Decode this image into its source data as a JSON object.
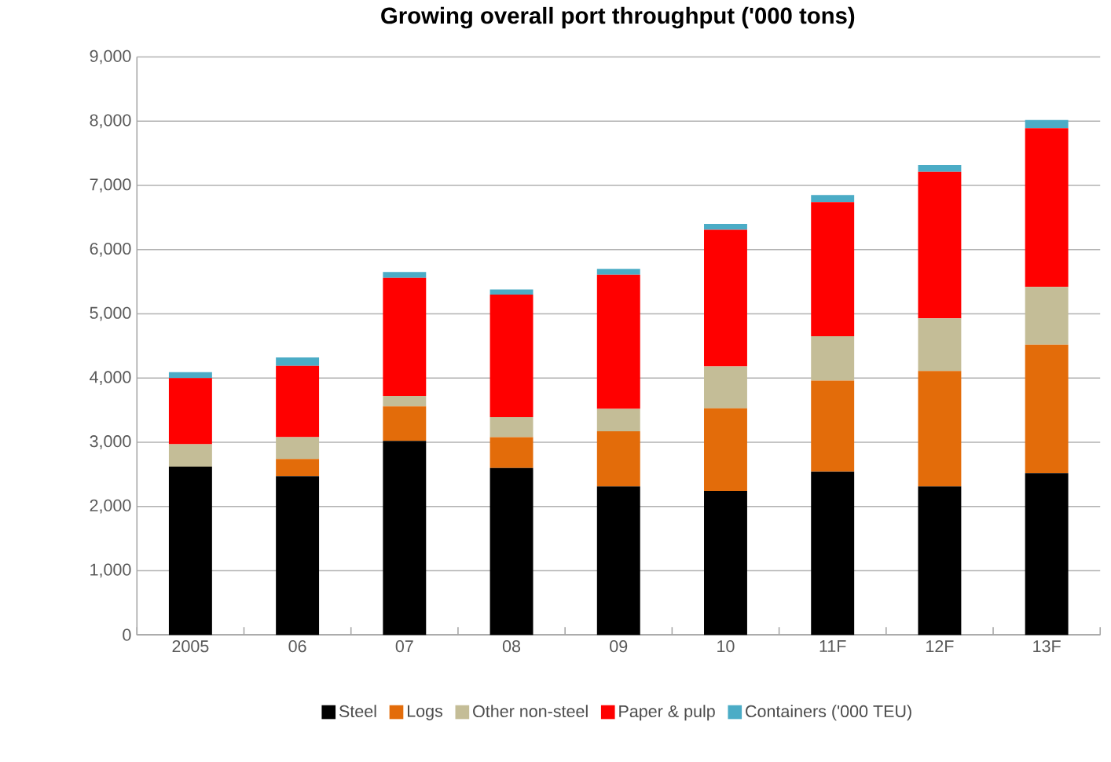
{
  "chart_data": {
    "type": "bar",
    "stacked": true,
    "title": "Growing overall port throughput ('000 tons)",
    "categories": [
      "2005",
      "06",
      "07",
      "08",
      "09",
      "10",
      "11F",
      "12F",
      "13F"
    ],
    "series": [
      {
        "name": "Steel",
        "color": "#000000",
        "values": [
          2620,
          2470,
          3020,
          2600,
          2310,
          2240,
          2540,
          2310,
          2520
        ]
      },
      {
        "name": "Logs",
        "color": "#e36c0a",
        "values": [
          0,
          270,
          540,
          480,
          860,
          1290,
          1420,
          1800,
          2000
        ]
      },
      {
        "name": "Other non-steel",
        "color": "#c4bd97",
        "values": [
          350,
          340,
          160,
          310,
          350,
          650,
          690,
          820,
          900
        ]
      },
      {
        "name": "Paper & pulp",
        "color": "#ff0000",
        "values": [
          1030,
          1110,
          1840,
          1910,
          2090,
          2130,
          2090,
          2280,
          2470
        ]
      },
      {
        "name": "Containers ('000 TEU)",
        "color": "#4bacc6",
        "values": [
          90,
          130,
          90,
          80,
          90,
          90,
          110,
          110,
          130
        ]
      }
    ],
    "ylim": [
      0,
      9000
    ],
    "yticks": [
      0,
      {
        "value": 1000,
        "label": "1,000"
      },
      {
        "value": 2000,
        "label": "2,000"
      },
      {
        "value": 3000,
        "label": "3,000"
      },
      {
        "value": 4000,
        "label": "4,000"
      },
      {
        "value": 5000,
        "label": "5,000"
      },
      {
        "value": 6000,
        "label": "6,000"
      },
      {
        "value": 7000,
        "label": "7,000"
      },
      {
        "value": 8000,
        "label": "8,000"
      },
      {
        "value": 9000,
        "label": "9,000"
      }
    ],
    "grid": "y",
    "legend": "bottom"
  }
}
